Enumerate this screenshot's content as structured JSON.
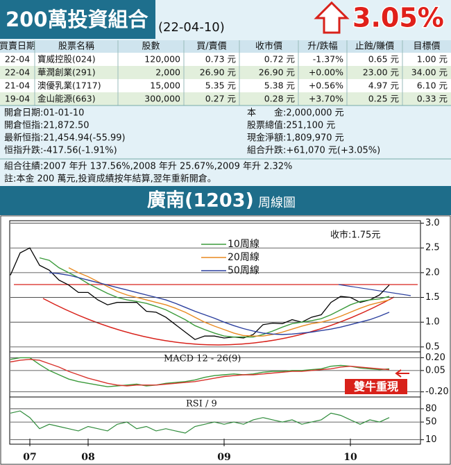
{
  "header": {
    "title": "200萬投資組合",
    "date": "(22-04-10)",
    "change": "3.05%"
  },
  "table": {
    "columns": [
      "買賣日期",
      "股票名稱",
      "股數",
      "買/賣價",
      "收市價",
      "升/跌幅",
      "止蝕/賺價",
      "目標價"
    ],
    "rows": [
      [
        "22-04",
        "寶威控股(024)",
        "120,000",
        "0.73 元",
        "0.72 元",
        "-1.37%",
        "0.65 元",
        "1.00 元"
      ],
      [
        "22-04",
        "華潤創業(291)",
        "2,000",
        "26.90 元",
        "26.90 元",
        "+0.00%",
        "23.00 元",
        "34.00 元"
      ],
      [
        "21-04",
        "澳優乳業(1717)",
        "15,000",
        "5.35 元",
        "5.38 元",
        "+0.56%",
        "4.97 元",
        "6.10 元"
      ],
      [
        "19-04",
        "金山能源(663)",
        "300,000",
        "0.27 元",
        "0.28 元",
        "+3.70%",
        "0.25 元",
        "0.33 元"
      ]
    ]
  },
  "summary": {
    "left": [
      "開倉日期:01-01-10",
      "開倉恒指:21,872.50",
      "最新恒指:21,454.94(-55.99)",
      "恒指升跌:-417.56(-1.91%)"
    ],
    "right": [
      "本　　金:2,000,000 元",
      "股票總值:251,100 元",
      "現金淨額:1,809,970 元",
      "組合升跌:+61,070 元(+3.05%)"
    ],
    "notes": [
      "組合往績:2007 年升 137.56%,2008 年升 25.67%,2009 年升 2.32%",
      "註:本金 200 萬元,投資成績按年結算,翌年重新開倉。"
    ]
  },
  "chart_header": {
    "stock": "廣南(1203)",
    "suffix": "周線圖"
  },
  "chart_data": [
    {
      "type": "line",
      "annotation": "收市:1.75元",
      "color": "#000000",
      "grid": true,
      "categories": [
        null,
        null,
        "07",
        null,
        null,
        null,
        null,
        null,
        "08",
        null,
        null,
        null,
        null,
        null,
        null,
        null,
        null,
        null,
        null,
        null,
        null,
        null,
        "09",
        null,
        null,
        null,
        null,
        null,
        null,
        null,
        null,
        null,
        null,
        null,
        null,
        "10",
        null,
        null,
        null,
        null
      ],
      "values": [
        1.95,
        2.4,
        2.5,
        2.15,
        2.05,
        1.85,
        1.75,
        1.6,
        1.6,
        1.45,
        1.35,
        1.4,
        1.4,
        1.4,
        1.22,
        1.2,
        1.1,
        0.95,
        0.8,
        0.65,
        0.72,
        0.72,
        0.68,
        0.7,
        0.68,
        0.75,
        0.95,
        0.98,
        0.97,
        1.05,
        1.0,
        1.1,
        1.15,
        1.4,
        1.52,
        1.5,
        1.4,
        1.45,
        1.55,
        1.75
      ],
      "series": [
        {
          "name": "10周線",
          "color": "#3a9a3a",
          "values": [
            null,
            null,
            null,
            2.3,
            2.25,
            2.1,
            2.0,
            1.9,
            1.78,
            1.68,
            1.58,
            1.5,
            1.45,
            1.42,
            1.38,
            1.32,
            1.25,
            1.15,
            1.05,
            0.93,
            0.85,
            0.78,
            0.72,
            0.7,
            0.7,
            0.7,
            0.75,
            0.82,
            0.9,
            0.97,
            1.0,
            1.03,
            1.07,
            1.15,
            1.25,
            1.35,
            1.42,
            1.45,
            1.47,
            1.52
          ]
        },
        {
          "name": "20周線",
          "color": "#e8891f",
          "values": [
            null,
            null,
            null,
            null,
            null,
            null,
            2.1,
            2.0,
            1.92,
            1.82,
            1.72,
            1.62,
            1.55,
            1.5,
            1.45,
            1.4,
            1.35,
            1.28,
            1.2,
            1.1,
            1.0,
            0.92,
            0.85,
            0.78,
            0.73,
            0.72,
            0.72,
            0.75,
            0.8,
            0.86,
            0.92,
            0.97,
            1.0,
            1.05,
            1.12,
            1.2,
            1.28,
            1.35,
            1.4,
            1.45
          ]
        },
        {
          "name": "50周線",
          "color": "#2b3f9e",
          "values": [
            null,
            null,
            null,
            null,
            2.0,
            1.98,
            1.95,
            1.9,
            1.85,
            1.8,
            1.75,
            1.7,
            1.65,
            1.6,
            1.55,
            1.5,
            1.45,
            1.38,
            1.3,
            1.22,
            1.15,
            1.08,
            1.0,
            0.93,
            0.87,
            0.82,
            0.78,
            0.76,
            0.75,
            0.76,
            0.78,
            0.8,
            0.83,
            0.86,
            0.9,
            0.95,
            1.0,
            1.05,
            1.12,
            1.2
          ]
        }
      ],
      "ylim": [
        0.4,
        3.05
      ],
      "yticks": [
        {
          "value": 3.0,
          "label": "3.0"
        },
        2.5,
        {
          "value": 2.0,
          "label": "2.0"
        },
        1.5,
        {
          "value": 1.0,
          "label": "1.0"
        },
        0.5
      ]
    },
    {
      "type": "line",
      "title": "MACD 12 - 26(9)",
      "annotation": "雙牛重現",
      "grid": true,
      "series": [
        {
          "color": "#3a9a3a",
          "values": [
            0.18,
            0.2,
            0.2,
            0.12,
            0.05,
            0.0,
            -0.05,
            -0.08,
            -0.1,
            -0.12,
            -0.14,
            -0.13,
            -0.12,
            -0.11,
            -0.13,
            -0.12,
            -0.1,
            -0.09,
            -0.08,
            -0.06,
            -0.03,
            -0.01,
            0.0,
            0.01,
            0.0,
            0.01,
            0.03,
            0.04,
            0.04,
            0.05,
            0.05,
            0.06,
            0.07,
            0.1,
            0.11,
            0.1,
            0.08,
            0.07,
            0.06,
            0.07
          ]
        },
        {
          "color": "#d8322b",
          "values": [
            0.15,
            0.17,
            0.18,
            0.17,
            0.13,
            0.09,
            0.04,
            0.0,
            -0.04,
            -0.07,
            -0.1,
            -0.12,
            -0.13,
            -0.12,
            -0.12,
            -0.12,
            -0.11,
            -0.1,
            -0.09,
            -0.08,
            -0.06,
            -0.04,
            -0.02,
            -0.01,
            0.0,
            0.0,
            0.01,
            0.02,
            0.03,
            0.04,
            0.04,
            0.05,
            0.06,
            0.07,
            0.09,
            0.1,
            0.09,
            0.08,
            0.07,
            0.06
          ]
        }
      ],
      "ylim": [
        -0.26,
        0.26
      ],
      "yticks": [
        {
          "value": 0.2,
          "label": "0.20"
        },
        {
          "value": 0.05,
          "label": "0.05"
        },
        {
          "value": -0.2,
          "label": "-0.20"
        }
      ]
    },
    {
      "type": "line",
      "title": "RSI / 9",
      "color": "#2e8b3a",
      "grid": true,
      "values": [
        70,
        75,
        60,
        35,
        45,
        40,
        35,
        30,
        40,
        35,
        30,
        45,
        50,
        35,
        40,
        30,
        35,
        30,
        25,
        40,
        45,
        50,
        45,
        50,
        45,
        55,
        60,
        55,
        50,
        55,
        45,
        50,
        55,
        70,
        65,
        55,
        45,
        55,
        50,
        60
      ],
      "ylim": [
        0,
        105
      ],
      "yticks": [
        80,
        50,
        10
      ]
    }
  ]
}
